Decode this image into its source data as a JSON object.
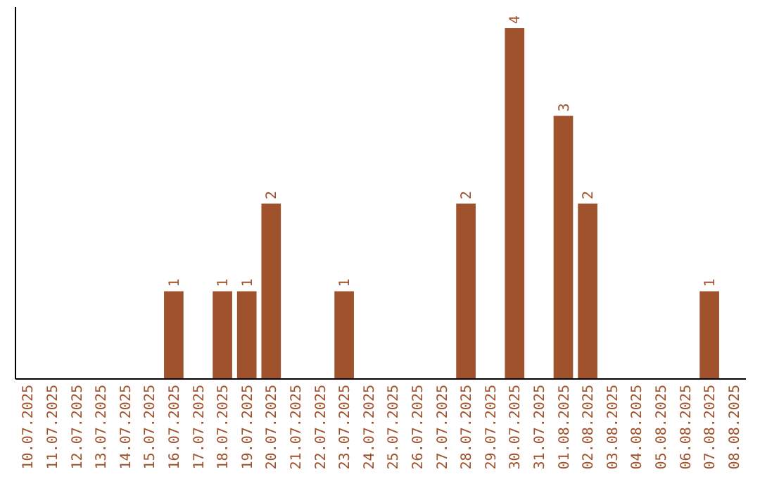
{
  "chart_data": {
    "type": "bar",
    "categories": [
      "10.07.2025",
      "11.07.2025",
      "12.07.2025",
      "13.07.2025",
      "14.07.2025",
      "15.07.2025",
      "16.07.2025",
      "17.07.2025",
      "18.07.2025",
      "19.07.2025",
      "20.07.2025",
      "21.07.2025",
      "22.07.2025",
      "23.07.2025",
      "24.07.2025",
      "25.07.2025",
      "26.07.2025",
      "27.07.2025",
      "28.07.2025",
      "29.07.2025",
      "30.07.2025",
      "31.07.2025",
      "01.08.2025",
      "02.08.2025",
      "03.08.2025",
      "04.08.2025",
      "05.08.2025",
      "06.08.2025",
      "07.08.2025",
      "08.08.2025"
    ],
    "values": [
      0,
      0,
      0,
      0,
      0,
      0,
      1,
      0,
      1,
      1,
      2,
      0,
      0,
      1,
      0,
      0,
      0,
      0,
      2,
      0,
      4,
      0,
      3,
      2,
      0,
      0,
      0,
      0,
      1,
      0
    ],
    "value_labels": [
      null,
      null,
      null,
      null,
      null,
      null,
      "1",
      null,
      "1",
      "1",
      "2",
      null,
      null,
      "1",
      null,
      null,
      null,
      null,
      "2",
      null,
      "4",
      null,
      "3",
      "2",
      null,
      null,
      null,
      null,
      "1",
      null
    ],
    "color": "#a0522d",
    "tick_labels": "x"
  }
}
